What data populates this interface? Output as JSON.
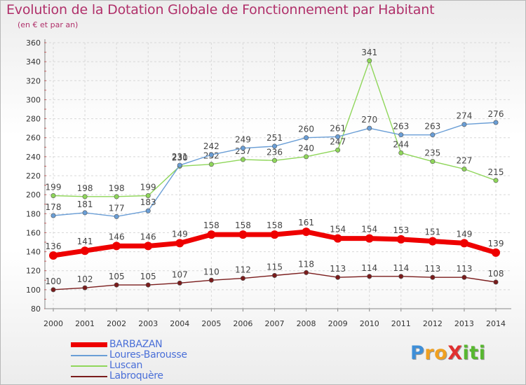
{
  "title": "Evolution de la Dotation Globale de Fonctionnement par Habitant",
  "subtitle": "(en € et par an)",
  "brand": {
    "letters": [
      {
        "ch": "P",
        "color": "#3f8fd8"
      },
      {
        "ch": "r",
        "color": "#f0a020"
      },
      {
        "ch": "o",
        "color": "#f0a020"
      },
      {
        "ch": "X",
        "color": "#e03030"
      },
      {
        "ch": "i",
        "color": "#58b830"
      },
      {
        "ch": "t",
        "color": "#58b830"
      },
      {
        "ch": "i",
        "color": "#58b830"
      }
    ]
  },
  "chart_data": {
    "type": "line",
    "x": [
      "2000",
      "2001",
      "2002",
      "2003",
      "2004",
      "2005",
      "2006",
      "2007",
      "2008",
      "2009",
      "2010",
      "2011",
      "2012",
      "2013",
      "2014"
    ],
    "ylim": [
      80,
      360
    ],
    "yticks": [
      80,
      100,
      120,
      140,
      160,
      180,
      200,
      220,
      240,
      260,
      280,
      300,
      320,
      340,
      360
    ],
    "grid": true,
    "legend_position": "bottom-left",
    "series": [
      {
        "name": "Labroquère",
        "color": "#7a1c1c",
        "values": [
          100,
          102,
          105,
          105,
          107,
          110,
          112,
          115,
          118,
          113,
          114,
          114,
          113,
          113,
          108
        ]
      },
      {
        "name": "Luscan",
        "color": "#8fd65a",
        "values": [
          199,
          198,
          198,
          199,
          230,
          232,
          237,
          236,
          240,
          247,
          341,
          244,
          235,
          227,
          215
        ]
      },
      {
        "name": "Loures-Barousse",
        "color": "#6a9ed6",
        "values": [
          178,
          181,
          177,
          183,
          231,
          242,
          249,
          251,
          260,
          261,
          270,
          263,
          263,
          274,
          276
        ]
      },
      {
        "name": "BARBAZAN",
        "color": "#ee0000",
        "values": [
          136,
          141,
          146,
          146,
          149,
          158,
          158,
          158,
          161,
          154,
          154,
          153,
          151,
          149,
          139
        ]
      }
    ]
  }
}
